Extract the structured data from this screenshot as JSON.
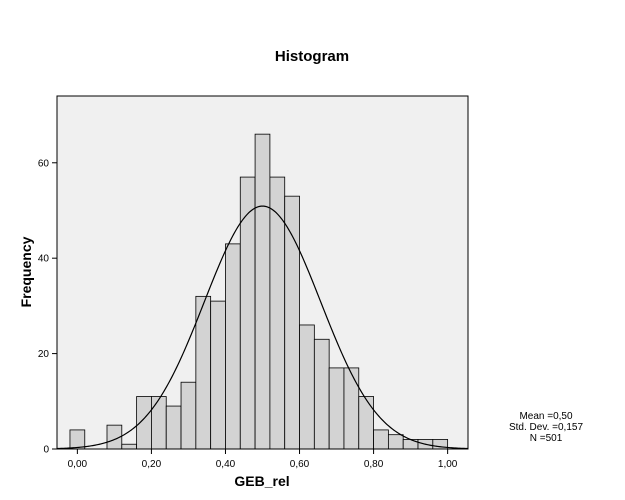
{
  "chart_data": {
    "type": "bar",
    "title": "Histogram",
    "xlabel": "GEB_rel",
    "ylabel": "Frequency",
    "xlim": [
      -0.055,
      1.055
    ],
    "ylim": [
      0,
      74
    ],
    "bin_width": 0.04,
    "x_ticks": [
      "0,00",
      "0,20",
      "0,40",
      "0,60",
      "0,80",
      "1,00"
    ],
    "x_tick_values": [
      0,
      0.2,
      0.4,
      0.6,
      0.8,
      1.0
    ],
    "y_ticks": [
      "0",
      "20",
      "40",
      "60"
    ],
    "y_tick_values": [
      0,
      20,
      40,
      60
    ],
    "bins": [
      {
        "x": 0.0,
        "count": 4
      },
      {
        "x": 0.04,
        "count": 0
      },
      {
        "x": 0.08,
        "count": 0
      },
      {
        "x": 0.1,
        "count": 5
      },
      {
        "x": 0.14,
        "count": 1
      },
      {
        "x": 0.18,
        "count": 11
      },
      {
        "x": 0.22,
        "count": 11
      },
      {
        "x": 0.26,
        "count": 9
      },
      {
        "x": 0.3,
        "count": 14
      },
      {
        "x": 0.34,
        "count": 32
      },
      {
        "x": 0.38,
        "count": 31
      },
      {
        "x": 0.42,
        "count": 43
      },
      {
        "x": 0.46,
        "count": 57
      },
      {
        "x": 0.5,
        "count": 66
      },
      {
        "x": 0.54,
        "count": 57
      },
      {
        "x": 0.58,
        "count": 53
      },
      {
        "x": 0.62,
        "count": 26
      },
      {
        "x": 0.66,
        "count": 23
      },
      {
        "x": 0.7,
        "count": 17
      },
      {
        "x": 0.74,
        "count": 17
      },
      {
        "x": 0.78,
        "count": 11
      },
      {
        "x": 0.82,
        "count": 4
      },
      {
        "x": 0.86,
        "count": 3
      },
      {
        "x": 0.9,
        "count": 2
      },
      {
        "x": 0.94,
        "count": 2
      },
      {
        "x": 0.98,
        "count": 2
      }
    ],
    "normal_curve": {
      "mean": 0.5,
      "std_dev": 0.157,
      "n": 501
    },
    "stats": {
      "mean": "Mean =0,50",
      "std_dev": "Std. Dev. =0,157",
      "n": "N =501"
    },
    "colors": {
      "plot_background": "#f0f0f0",
      "bar_fill": "#d3d3d3",
      "bar_stroke": "#000000",
      "curve": "#000000"
    },
    "grid": false,
    "legend": "none"
  }
}
